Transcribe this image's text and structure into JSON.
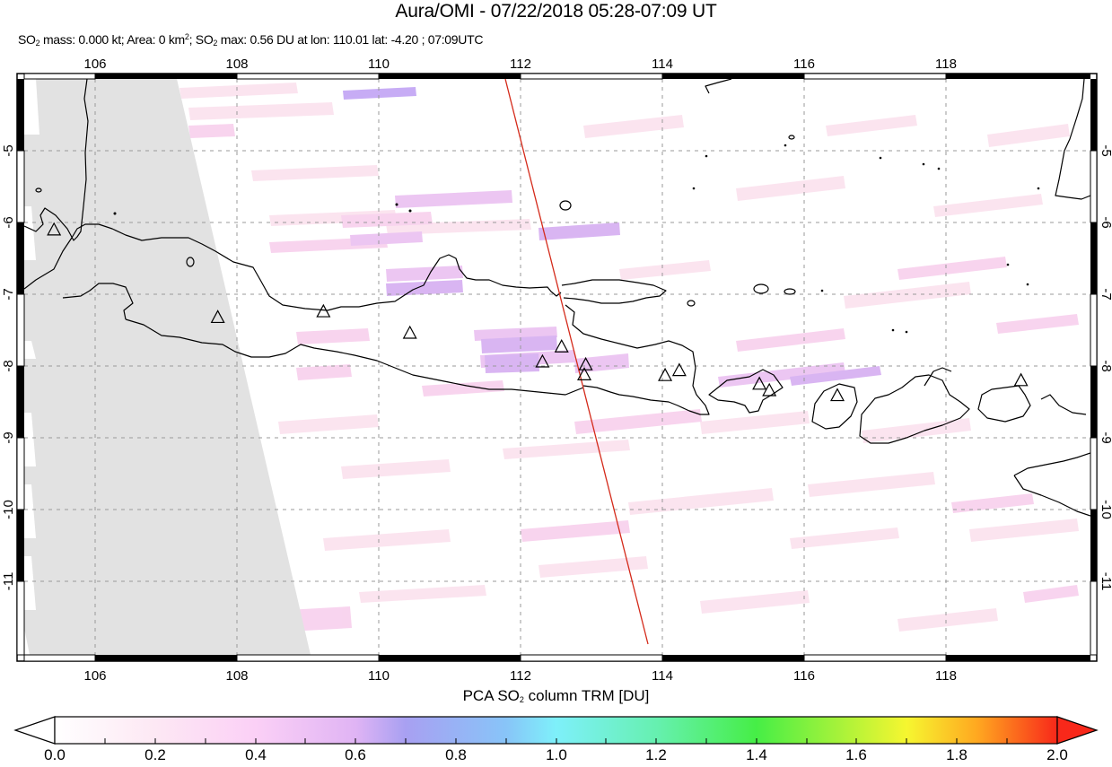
{
  "header": {
    "title": "Aura/OMI - 07/22/2018 05:28-07:09 UT",
    "subtitle_parts": {
      "so2_a": "SO",
      "sub2_a": "2",
      "mass": " mass: 0.000 kt; Area: 0 km",
      "sup2": "2",
      "sep": "; SO",
      "sub2_b": "2",
      "rest": " max: 0.56 DU at lon: 110.01 lat: -4.20 ; 07:09UTC"
    }
  },
  "map": {
    "lon_min": 105.0,
    "lon_max": 120.04,
    "lat_max": -4.0,
    "lat_min": -12.03,
    "lon_ticks": [
      "106",
      "108",
      "110",
      "112",
      "114",
      "116",
      "118"
    ],
    "lat_ticks": [
      "-5",
      "-6",
      "-7",
      "-8",
      "-9",
      "-10",
      "-11"
    ],
    "gridline_color": "#999999",
    "nodata_color": "#e2e2e2",
    "orbit_track_color": "#d42a1a",
    "volcanoes": [
      {
        "lon": 105.42,
        "lat": -6.1
      },
      {
        "lon": 107.73,
        "lat": -7.32
      },
      {
        "lon": 109.22,
        "lat": -7.24
      },
      {
        "lon": 110.44,
        "lat": -7.54
      },
      {
        "lon": 112.31,
        "lat": -7.94
      },
      {
        "lon": 112.58,
        "lat": -7.73
      },
      {
        "lon": 112.92,
        "lat": -7.98
      },
      {
        "lon": 112.9,
        "lat": -8.12
      },
      {
        "lon": 114.04,
        "lat": -8.13
      },
      {
        "lon": 114.24,
        "lat": -8.06
      },
      {
        "lon": 115.37,
        "lat": -8.25
      },
      {
        "lon": 115.51,
        "lat": -8.34
      },
      {
        "lon": 116.47,
        "lat": -8.41
      },
      {
        "lon": 119.06,
        "lat": -8.2
      }
    ]
  },
  "colorbar": {
    "label_pre": "PCA SO",
    "label_sub": "2",
    "label_post": " column TRM [DU]",
    "ticks": [
      "0.0",
      "0.2",
      "0.4",
      "0.6",
      "0.8",
      "1.0",
      "1.2",
      "1.4",
      "1.6",
      "1.8",
      "2.0"
    ],
    "range": [
      0.0,
      2.0
    ],
    "stops": [
      "#ffffff",
      "#fbd0f4",
      "#d4a8f6",
      "#a29cf2",
      "#84e8fa",
      "#7df7ec",
      "#50ee5a",
      "#a4f33c",
      "#fbf52a",
      "#ff8a1c",
      "#f9281c"
    ]
  }
}
